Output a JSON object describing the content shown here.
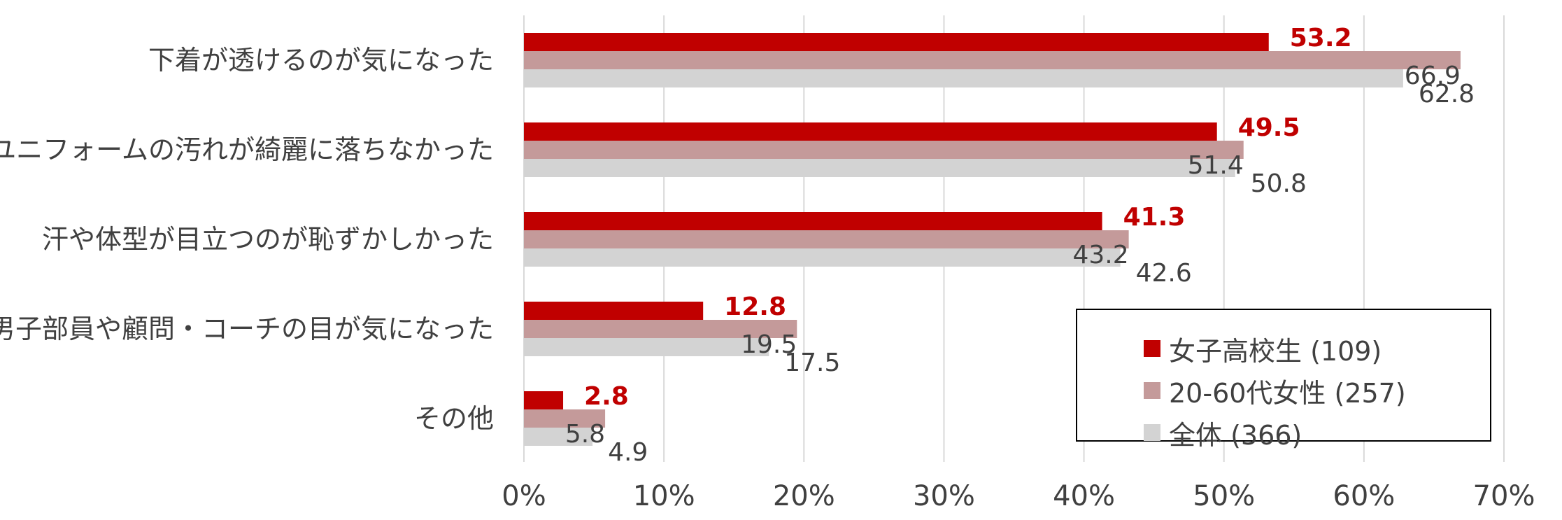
{
  "chart_data": {
    "type": "bar",
    "orientation": "horizontal",
    "categories": [
      "下着が透けるのが気になった",
      "ユニフォームの汚れが綺麗に落ちなかった",
      "汗や体型が目立つのが恥ずかしかった",
      "男子部員や顧問・コーチの目が気になった",
      "その他"
    ],
    "series": [
      {
        "name": "女子高校生 (109)",
        "color": "#c00000",
        "values": [
          53.2,
          49.5,
          41.3,
          12.8,
          2.8
        ]
      },
      {
        "name": "20-60代女性 (257)",
        "color": "#c49a9a",
        "values": [
          66.9,
          51.4,
          43.2,
          19.5,
          5.8
        ]
      },
      {
        "name": "全体 (366)",
        "color": "#d3d3d3",
        "values": [
          62.8,
          50.8,
          42.6,
          17.5,
          4.9
        ]
      }
    ],
    "xlim": [
      0,
      70
    ],
    "xticks": [
      "0%",
      "10%",
      "20%",
      "30%",
      "40%",
      "50%",
      "60%",
      "70%"
    ],
    "grid": true,
    "legend_position": "bottom-right",
    "title": "",
    "xlabel": "",
    "ylabel": ""
  }
}
